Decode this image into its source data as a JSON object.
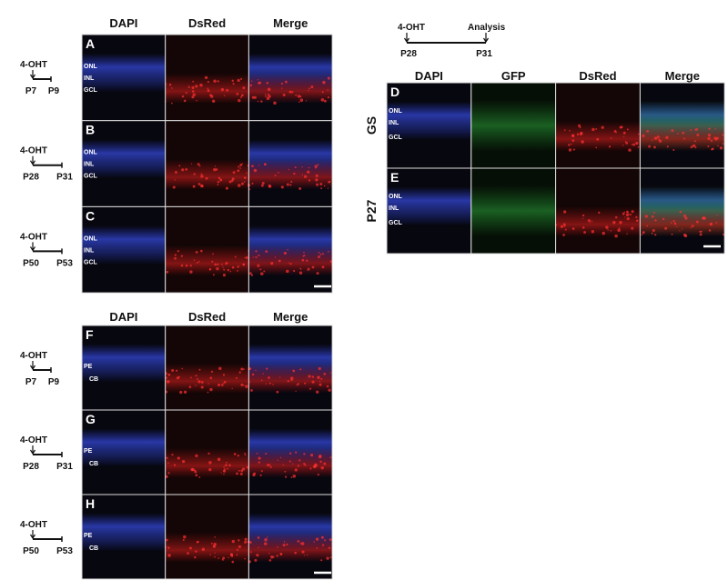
{
  "figure_top_left": {
    "columns": [
      "DAPI",
      "DsRed",
      "Merge"
    ],
    "panels": [
      {
        "letter": "A",
        "layers": [
          "ONL",
          "INL",
          "GCL"
        ],
        "timeline": {
          "treatment": "4-OHT",
          "start": "P7",
          "end": "P9"
        }
      },
      {
        "letter": "B",
        "layers": [
          "ONL",
          "INL",
          "GCL"
        ],
        "timeline": {
          "treatment": "4-OHT",
          "start": "P28",
          "end": "P31"
        }
      },
      {
        "letter": "C",
        "layers": [
          "ONL",
          "INL",
          "GCL"
        ],
        "timeline": {
          "treatment": "4-OHT",
          "start": "P50",
          "end": "P53"
        }
      }
    ]
  },
  "figure_right": {
    "timeline": {
      "treatment": "4-OHT",
      "analysis": "Analysis",
      "start": "P28",
      "end": "P31"
    },
    "columns": [
      "DAPI",
      "GFP",
      "DsRed",
      "Merge"
    ],
    "rows": [
      {
        "letter": "D",
        "label": "GS",
        "layers": [
          "ONL",
          "INL",
          "GCL"
        ]
      },
      {
        "letter": "E",
        "label": "P27",
        "layers": [
          "ONL",
          "INL",
          "GCL"
        ]
      }
    ]
  },
  "figure_bottom": {
    "columns": [
      "DAPI",
      "DsRed",
      "Merge"
    ],
    "panels": [
      {
        "letter": "F",
        "layers": [
          "PE",
          "CB"
        ],
        "timeline": {
          "treatment": "4-OHT",
          "start": "P7",
          "end": "P9"
        }
      },
      {
        "letter": "G",
        "layers": [
          "PE",
          "CB"
        ],
        "timeline": {
          "treatment": "4-OHT",
          "start": "P28",
          "end": "P31"
        }
      },
      {
        "letter": "H",
        "layers": [
          "PE",
          "CB"
        ],
        "timeline": {
          "treatment": "4-OHT",
          "start": "P50",
          "end": "P53"
        }
      }
    ]
  }
}
